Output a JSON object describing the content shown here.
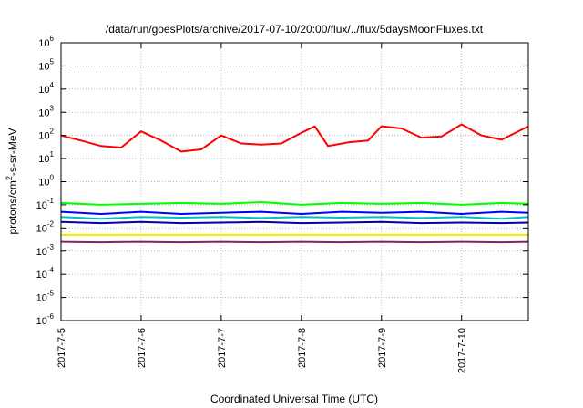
{
  "chart_data": {
    "type": "line",
    "title": "/data/run/goesPlots/archive/2017-07-10/20:00/flux/../flux/5daysMoonFluxes.txt",
    "xlabel": "Coordinated Universal Time (UTC)",
    "ylabel": "protons/cm²-s-sr-MeV",
    "ylabel_parts": {
      "pre": "protons/cm",
      "sup": "2",
      "post": "-s-sr-MeV"
    },
    "x_scale": "date",
    "xlim": [
      "2017-07-05T00:00",
      "2017-07-10T20:00"
    ],
    "x_ticks": [
      "2017-7-5",
      "2017-7-6",
      "2017-7-7",
      "2017-7-8",
      "2017-7-9",
      "2017-7-10"
    ],
    "y_scale": "log",
    "ylim": [
      1e-06,
      1000000.0
    ],
    "y_ticks": [
      {
        "base": "10",
        "exp": "-6"
      },
      {
        "base": "10",
        "exp": "-5"
      },
      {
        "base": "10",
        "exp": "-4"
      },
      {
        "base": "10",
        "exp": "-3"
      },
      {
        "base": "10",
        "exp": "-2"
      },
      {
        "base": "10",
        "exp": "-1"
      },
      {
        "base": "10",
        "exp": "0"
      },
      {
        "base": "10",
        "exp": "1"
      },
      {
        "base": "10",
        "exp": "2"
      },
      {
        "base": "10",
        "exp": "3"
      },
      {
        "base": "10",
        "exp": "4"
      },
      {
        "base": "10",
        "exp": "5"
      },
      {
        "base": "10",
        "exp": "6"
      }
    ],
    "grid": true,
    "series": [
      {
        "color": "#ff0000",
        "x": [
          "2017-07-05T00:00",
          "2017-07-05T06:00",
          "2017-07-05T12:00",
          "2017-07-05T18:00",
          "2017-07-06T00:00",
          "2017-07-06T06:00",
          "2017-07-06T12:00",
          "2017-07-06T18:00",
          "2017-07-07T00:00",
          "2017-07-07T06:00",
          "2017-07-07T12:00",
          "2017-07-07T18:00",
          "2017-07-08T00:00",
          "2017-07-08T04:00",
          "2017-07-08T08:00",
          "2017-07-08T14:00",
          "2017-07-08T20:00",
          "2017-07-09T00:00",
          "2017-07-09T06:00",
          "2017-07-09T12:00",
          "2017-07-09T18:00",
          "2017-07-10T00:00",
          "2017-07-10T06:00",
          "2017-07-10T12:00",
          "2017-07-10T20:00"
        ],
        "y": [
          100,
          60,
          35,
          30,
          150,
          60,
          20,
          25,
          100,
          45,
          40,
          45,
          130,
          250,
          35,
          50,
          60,
          250,
          200,
          80,
          90,
          300,
          100,
          65,
          250
        ]
      },
      {
        "color": "#00ff00",
        "x": [
          "2017-07-05T00:00",
          "2017-07-05T12:00",
          "2017-07-06T00:00",
          "2017-07-06T12:00",
          "2017-07-07T00:00",
          "2017-07-07T12:00",
          "2017-07-08T00:00",
          "2017-07-08T12:00",
          "2017-07-09T00:00",
          "2017-07-09T12:00",
          "2017-07-10T00:00",
          "2017-07-10T12:00",
          "2017-07-10T20:00"
        ],
        "y": [
          0.12,
          0.1,
          0.11,
          0.12,
          0.11,
          0.13,
          0.1,
          0.12,
          0.11,
          0.12,
          0.1,
          0.12,
          0.11
        ]
      },
      {
        "color": "#00c0c0",
        "x": [
          "2017-07-05T00:00",
          "2017-07-05T12:00",
          "2017-07-06T00:00",
          "2017-07-06T12:00",
          "2017-07-07T00:00",
          "2017-07-07T12:00",
          "2017-07-08T00:00",
          "2017-07-08T12:00",
          "2017-07-09T00:00",
          "2017-07-09T12:00",
          "2017-07-10T00:00",
          "2017-07-10T12:00",
          "2017-07-10T20:00"
        ],
        "y": [
          0.03,
          0.025,
          0.03,
          0.028,
          0.03,
          0.027,
          0.03,
          0.028,
          0.03,
          0.027,
          0.03,
          0.025,
          0.03
        ]
      },
      {
        "color": "#0000ff",
        "x": [
          "2017-07-05T00:00",
          "2017-07-05T12:00",
          "2017-07-06T00:00",
          "2017-07-06T12:00",
          "2017-07-07T00:00",
          "2017-07-07T12:00",
          "2017-07-08T00:00",
          "2017-07-08T12:00",
          "2017-07-09T00:00",
          "2017-07-09T12:00",
          "2017-07-10T00:00",
          "2017-07-10T12:00",
          "2017-07-10T20:00"
        ],
        "y": [
          0.05,
          0.04,
          0.05,
          0.04,
          0.045,
          0.05,
          0.04,
          0.05,
          0.045,
          0.05,
          0.04,
          0.05,
          0.045
        ]
      },
      {
        "color": "#0000b0",
        "x": [
          "2017-07-05T00:00",
          "2017-07-05T12:00",
          "2017-07-06T00:00",
          "2017-07-06T12:00",
          "2017-07-07T00:00",
          "2017-07-07T12:00",
          "2017-07-08T00:00",
          "2017-07-08T12:00",
          "2017-07-09T00:00",
          "2017-07-09T12:00",
          "2017-07-10T00:00",
          "2017-07-10T12:00",
          "2017-07-10T20:00"
        ],
        "y": [
          0.018,
          0.016,
          0.018,
          0.016,
          0.017,
          0.018,
          0.016,
          0.017,
          0.018,
          0.016,
          0.017,
          0.016,
          0.017
        ]
      },
      {
        "color": "#f0f000",
        "x": [
          "2017-07-05T00:00",
          "2017-07-06T00:00",
          "2017-07-07T00:00",
          "2017-07-08T00:00",
          "2017-07-09T00:00",
          "2017-07-10T00:00",
          "2017-07-10T20:00"
        ],
        "y": [
          0.005,
          0.005,
          0.005,
          0.005,
          0.005,
          0.005,
          0.005
        ]
      },
      {
        "color": "#882266",
        "x": [
          "2017-07-05T00:00",
          "2017-07-05T12:00",
          "2017-07-06T00:00",
          "2017-07-06T12:00",
          "2017-07-07T00:00",
          "2017-07-07T12:00",
          "2017-07-08T00:00",
          "2017-07-08T12:00",
          "2017-07-09T00:00",
          "2017-07-09T12:00",
          "2017-07-10T00:00",
          "2017-07-10T12:00",
          "2017-07-10T20:00"
        ],
        "y": [
          0.0025,
          0.0024,
          0.0025,
          0.0024,
          0.0025,
          0.0024,
          0.0025,
          0.0024,
          0.0025,
          0.0024,
          0.0025,
          0.0024,
          0.0025
        ]
      }
    ]
  }
}
